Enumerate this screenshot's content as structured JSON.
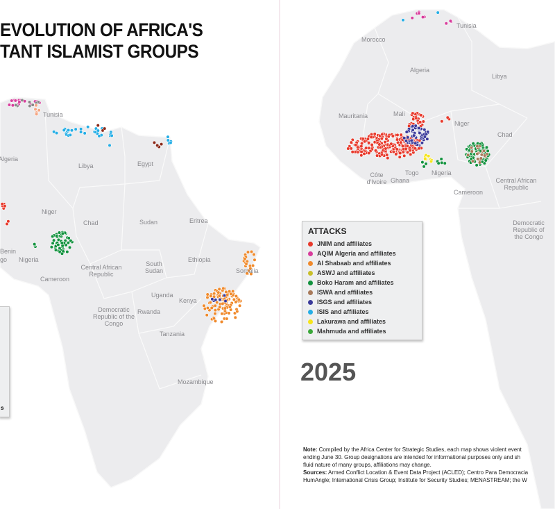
{
  "title": {
    "line1": "EVOLUTION OF AFRICA'S",
    "line2": "TANT ISLAMIST GROUPS"
  },
  "left_map": {
    "labels": [
      "Tunisia",
      "Algeria",
      "Libya",
      "Egypt",
      "Niger",
      "Chad",
      "Sudan",
      "Eritrea",
      "Benin",
      "go",
      "Nigeria",
      "Ethiopia",
      "Somalia",
      "Central African Republic",
      "South Sudan",
      "Cameroon",
      "Uganda",
      "Kenya",
      "Rwanda",
      "Democratic Republic of the Congo",
      "Tanzania",
      "Mozambique"
    ],
    "legend_fragment": "s"
  },
  "right_map": {
    "labels": [
      "Morocco",
      "Tunisia",
      "Algeria",
      "Libya",
      "Mauritania",
      "Mali",
      "Niger",
      "Chad",
      "Côte d'Ivoire",
      "Ghana",
      "Togo",
      "Nigeria",
      "Central African Republic",
      "Cameroon",
      "Democratic Republic of the Congo"
    ],
    "year": "2025"
  },
  "legend": {
    "title": "ATTACKS",
    "items": [
      {
        "label": "JNIM and affiliates",
        "color": "#e8392b"
      },
      {
        "label": "AQIM Algeria and affiliates",
        "color": "#d83d9c"
      },
      {
        "label": "Al Shabaab and affiliates",
        "color": "#f08a2c"
      },
      {
        "label": "ASWJ and affiliates",
        "color": "#c9bf2a"
      },
      {
        "label": "Boko Haram and affiliates",
        "color": "#12923e"
      },
      {
        "label": "ISWA and affiliates",
        "color": "#a87a5a"
      },
      {
        "label": "ISGS and affiliates",
        "color": "#3a3a9a"
      },
      {
        "label": "ISIS and affiliates",
        "color": "#25aee6"
      },
      {
        "label": "Lakurawa and affiliates",
        "color": "#f5e41a"
      },
      {
        "label": "Mahmuda and affiliates",
        "color": "#3aa83a"
      }
    ]
  },
  "note": {
    "note_label": "Note:",
    "note_text": " Compiled by the Africa Center for Strategic Studies, each map shows violent event",
    "note_line2": "ending June 30. Group designations are intended for informational purposes only and sh",
    "note_line3": "fluid nature of many groups, affiliations may change.",
    "sources_label": "Sources:",
    "sources_text": " Armed Conflict Location & Event Data Project (ACLED); Centro Para Democracia",
    "sources_line2": "HumAngle; International Crisis Group; Institute for Security Studies; MENASTREAM; the W"
  }
}
